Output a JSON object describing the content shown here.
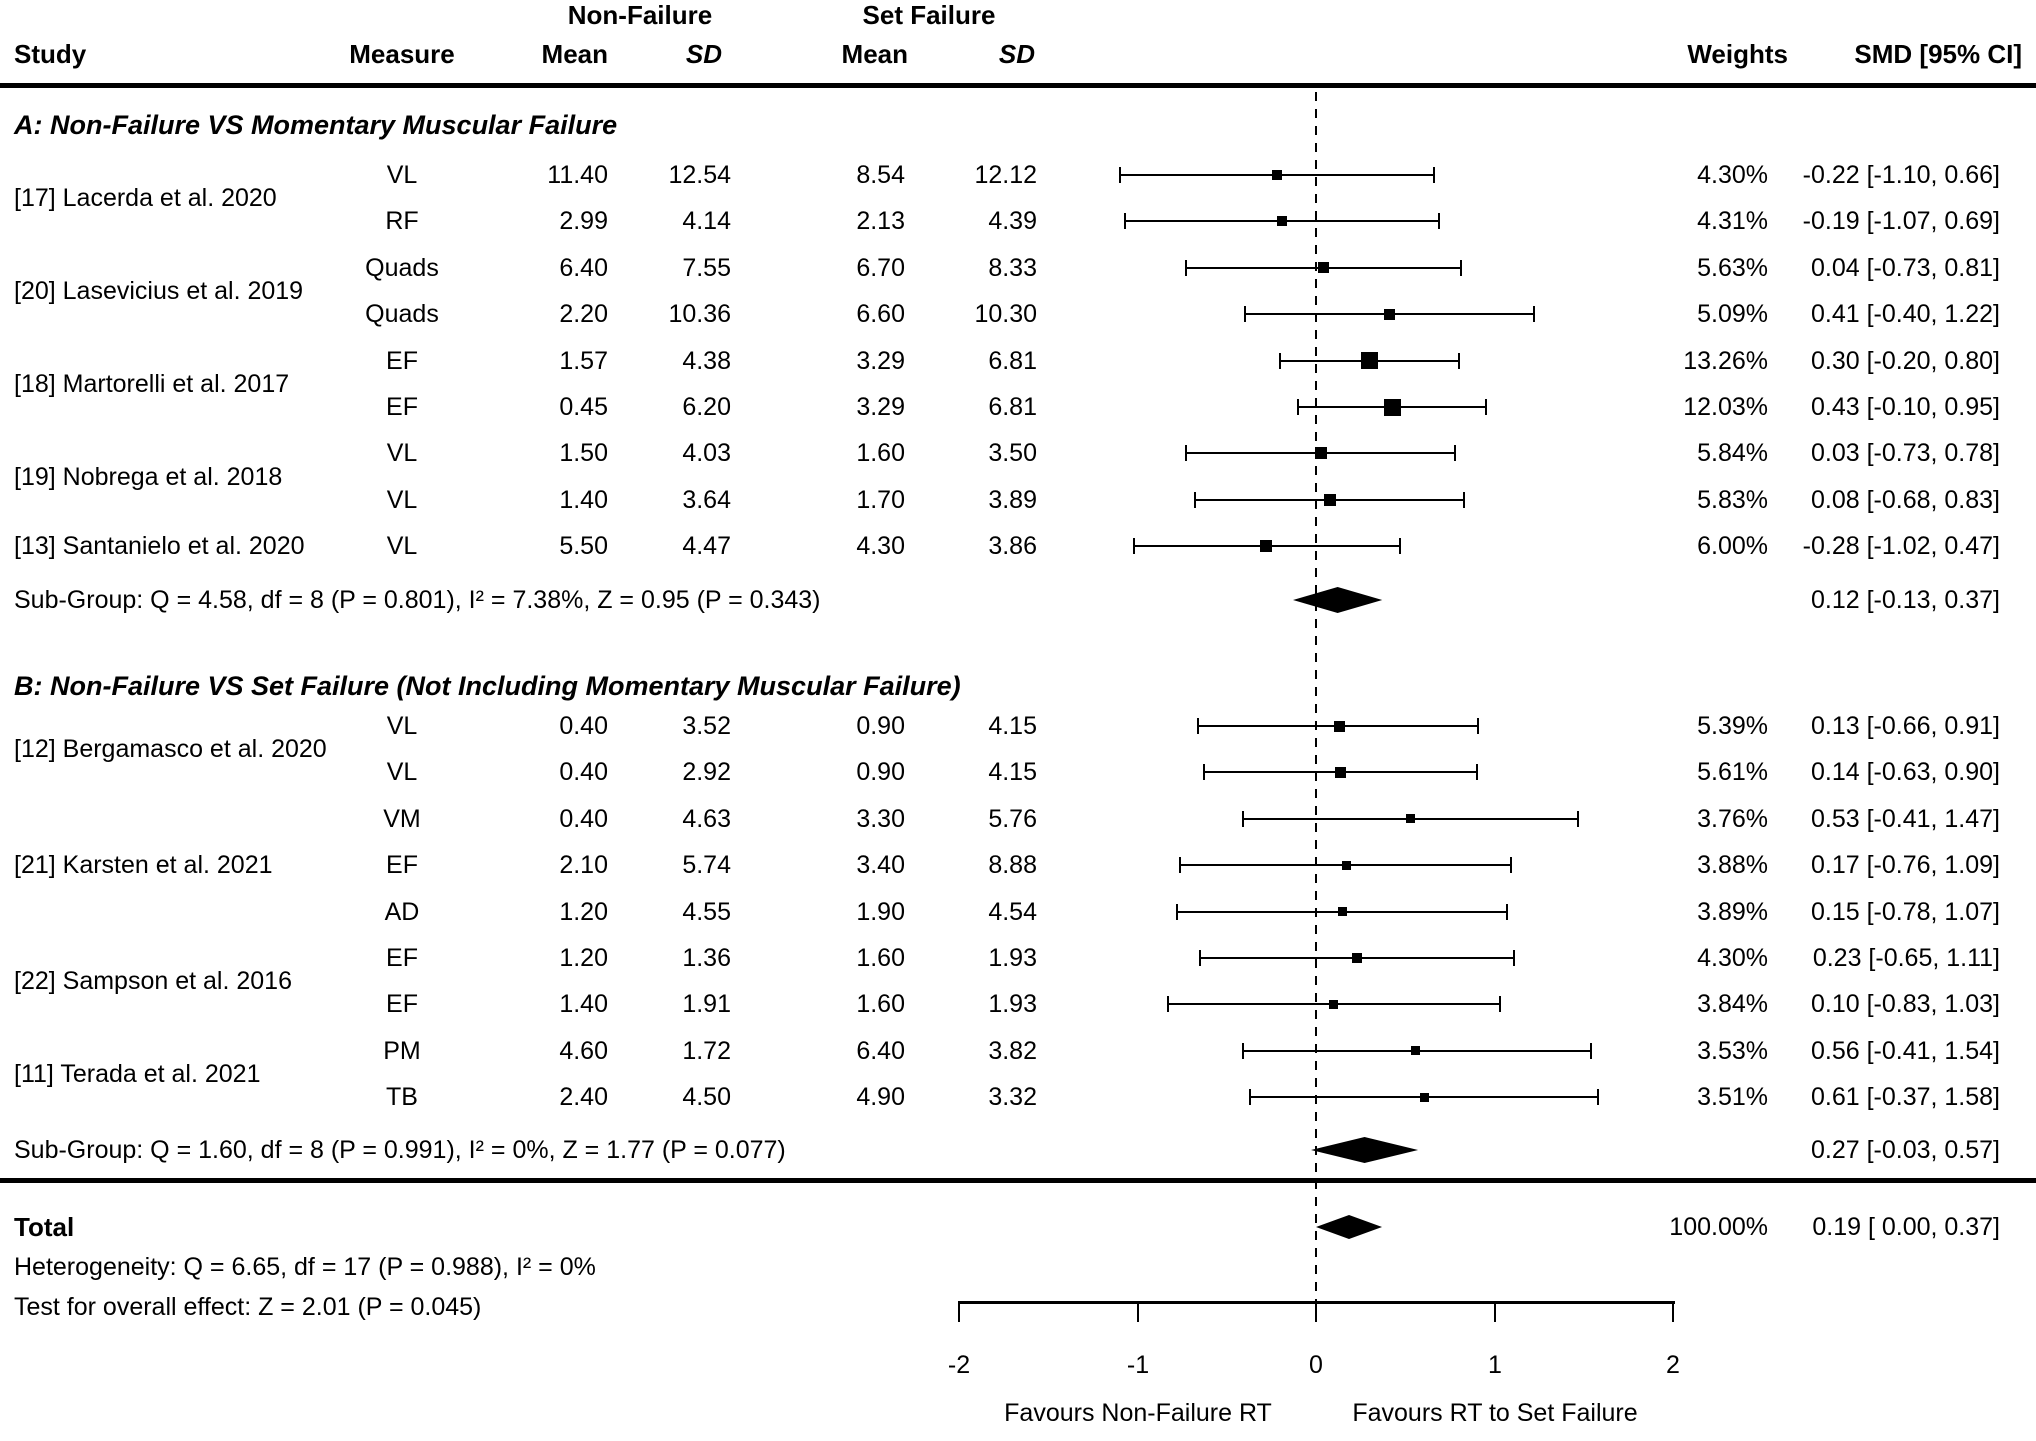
{
  "header": {
    "study": "Study",
    "measure": "Measure",
    "group_nonfailure": "Non-Failure",
    "group_setfailure": "Set Failure",
    "mean": "Mean",
    "sd": "SD",
    "weights": "Weights",
    "smd": "SMD [95% CI]"
  },
  "chart_data": {
    "type": "forest",
    "effect_measure": "SMD",
    "axis": {
      "xmin": -2,
      "xmax": 2,
      "ticks": [
        {
          "value": -2,
          "label": "-2"
        },
        {
          "value": -1,
          "label": "-1"
        },
        {
          "value": 0,
          "label": "0"
        },
        {
          "value": 1,
          "label": "1"
        },
        {
          "value": 2,
          "label": "2"
        }
      ],
      "zero_line": 0,
      "favours_left": "Favours Non-Failure RT",
      "favours_right": "Favours RT to Set Failure"
    },
    "sections": [
      {
        "title": "A: Non-Failure VS Momentary Muscular Failure",
        "studies": [
          {
            "label": "[17] Lacerda et al. 2020",
            "rows": [
              {
                "measure": "VL",
                "nf_mean": "11.40",
                "nf_sd": "12.54",
                "sf_mean": "8.54",
                "sf_sd": "12.12",
                "weight": "4.30%",
                "weight_value": 4.3,
                "smd": -0.22,
                "ci_low": -1.1,
                "ci_high": 0.66,
                "smd_label": "-0.22 [-1.10, 0.66]"
              },
              {
                "measure": "RF",
                "nf_mean": "2.99",
                "nf_sd": "4.14",
                "sf_mean": "2.13",
                "sf_sd": "4.39",
                "weight": "4.31%",
                "weight_value": 4.31,
                "smd": -0.19,
                "ci_low": -1.07,
                "ci_high": 0.69,
                "smd_label": "-0.19 [-1.07, 0.69]"
              }
            ]
          },
          {
            "label": "[20] Lasevicius et al. 2019",
            "rows": [
              {
                "measure": "Quads",
                "nf_mean": "6.40",
                "nf_sd": "7.55",
                "sf_mean": "6.70",
                "sf_sd": "8.33",
                "weight": "5.63%",
                "weight_value": 5.63,
                "smd": 0.04,
                "ci_low": -0.73,
                "ci_high": 0.81,
                "smd_label": "0.04 [-0.73, 0.81]"
              },
              {
                "measure": "Quads",
                "nf_mean": "2.20",
                "nf_sd": "10.36",
                "sf_mean": "6.60",
                "sf_sd": "10.30",
                "weight": "5.09%",
                "weight_value": 5.09,
                "smd": 0.41,
                "ci_low": -0.4,
                "ci_high": 1.22,
                "smd_label": "0.41 [-0.40, 1.22]"
              }
            ]
          },
          {
            "label": "[18] Martorelli et al. 2017",
            "rows": [
              {
                "measure": "EF",
                "nf_mean": "1.57",
                "nf_sd": "4.38",
                "sf_mean": "3.29",
                "sf_sd": "6.81",
                "weight": "13.26%",
                "weight_value": 13.26,
                "smd": 0.3,
                "ci_low": -0.2,
                "ci_high": 0.8,
                "smd_label": "0.30 [-0.20, 0.80]"
              },
              {
                "measure": "EF",
                "nf_mean": "0.45",
                "nf_sd": "6.20",
                "sf_mean": "3.29",
                "sf_sd": "6.81",
                "weight": "12.03%",
                "weight_value": 12.03,
                "smd": 0.43,
                "ci_low": -0.1,
                "ci_high": 0.95,
                "smd_label": "0.43 [-0.10, 0.95]"
              }
            ]
          },
          {
            "label": "[19] Nobrega et al. 2018",
            "rows": [
              {
                "measure": "VL",
                "nf_mean": "1.50",
                "nf_sd": "4.03",
                "sf_mean": "1.60",
                "sf_sd": "3.50",
                "weight": "5.84%",
                "weight_value": 5.84,
                "smd": 0.03,
                "ci_low": -0.73,
                "ci_high": 0.78,
                "smd_label": "0.03 [-0.73, 0.78]"
              },
              {
                "measure": "VL",
                "nf_mean": "1.40",
                "nf_sd": "3.64",
                "sf_mean": "1.70",
                "sf_sd": "3.89",
                "weight": "5.83%",
                "weight_value": 5.83,
                "smd": 0.08,
                "ci_low": -0.68,
                "ci_high": 0.83,
                "smd_label": "0.08 [-0.68, 0.83]"
              }
            ]
          },
          {
            "label": "[13] Santanielo et al. 2020",
            "rows": [
              {
                "measure": "VL",
                "nf_mean": "5.50",
                "nf_sd": "4.47",
                "sf_mean": "4.30",
                "sf_sd": "3.86",
                "weight": "6.00%",
                "weight_value": 6.0,
                "smd": -0.28,
                "ci_low": -1.02,
                "ci_high": 0.47,
                "smd_label": "-0.28 [-1.02, 0.47]"
              }
            ]
          }
        ],
        "subgroup": {
          "text": "Sub-Group: Q = 4.58, df = 8 (P = 0.801), I² = 7.38%, Z = 0.95 (P = 0.343)",
          "smd": 0.12,
          "ci_low": -0.13,
          "ci_high": 0.37,
          "smd_label": "0.12 [-0.13, 0.37]"
        }
      },
      {
        "title": "B: Non-Failure VS Set Failure (Not Including Momentary Muscular Failure)",
        "studies": [
          {
            "label": "[12] Bergamasco et al. 2020",
            "rows": [
              {
                "measure": "VL",
                "nf_mean": "0.40",
                "nf_sd": "3.52",
                "sf_mean": "0.90",
                "sf_sd": "4.15",
                "weight": "5.39%",
                "weight_value": 5.39,
                "smd": 0.13,
                "ci_low": -0.66,
                "ci_high": 0.91,
                "smd_label": "0.13 [-0.66, 0.91]"
              },
              {
                "measure": "VL",
                "nf_mean": "0.40",
                "nf_sd": "2.92",
                "sf_mean": "0.90",
                "sf_sd": "4.15",
                "weight": "5.61%",
                "weight_value": 5.61,
                "smd": 0.14,
                "ci_low": -0.63,
                "ci_high": 0.9,
                "smd_label": "0.14 [-0.63, 0.90]"
              }
            ]
          },
          {
            "label": "[21] Karsten et al. 2021",
            "rows": [
              {
                "measure": "VM",
                "nf_mean": "0.40",
                "nf_sd": "4.63",
                "sf_mean": "3.30",
                "sf_sd": "5.76",
                "weight": "3.76%",
                "weight_value": 3.76,
                "smd": 0.53,
                "ci_low": -0.41,
                "ci_high": 1.47,
                "smd_label": "0.53 [-0.41, 1.47]"
              },
              {
                "measure": "EF",
                "nf_mean": "2.10",
                "nf_sd": "5.74",
                "sf_mean": "3.40",
                "sf_sd": "8.88",
                "weight": "3.88%",
                "weight_value": 3.88,
                "smd": 0.17,
                "ci_low": -0.76,
                "ci_high": 1.09,
                "smd_label": "0.17 [-0.76, 1.09]"
              },
              {
                "measure": "AD",
                "nf_mean": "1.20",
                "nf_sd": "4.55",
                "sf_mean": "1.90",
                "sf_sd": "4.54",
                "weight": "3.89%",
                "weight_value": 3.89,
                "smd": 0.15,
                "ci_low": -0.78,
                "ci_high": 1.07,
                "smd_label": "0.15 [-0.78, 1.07]"
              }
            ]
          },
          {
            "label": "[22] Sampson et al. 2016",
            "rows": [
              {
                "measure": "EF",
                "nf_mean": "1.20",
                "nf_sd": "1.36",
                "sf_mean": "1.60",
                "sf_sd": "1.93",
                "weight": "4.30%",
                "weight_value": 4.3,
                "smd": 0.23,
                "ci_low": -0.65,
                "ci_high": 1.11,
                "smd_label": "0.23 [-0.65, 1.11]"
              },
              {
                "measure": "EF",
                "nf_mean": "1.40",
                "nf_sd": "1.91",
                "sf_mean": "1.60",
                "sf_sd": "1.93",
                "weight": "3.84%",
                "weight_value": 3.84,
                "smd": 0.1,
                "ci_low": -0.83,
                "ci_high": 1.03,
                "smd_label": "0.10 [-0.83, 1.03]"
              }
            ]
          },
          {
            "label": "[11] Terada et al. 2021",
            "rows": [
              {
                "measure": "PM",
                "nf_mean": "4.60",
                "nf_sd": "1.72",
                "sf_mean": "6.40",
                "sf_sd": "3.82",
                "weight": "3.53%",
                "weight_value": 3.53,
                "smd": 0.56,
                "ci_low": -0.41,
                "ci_high": 1.54,
                "smd_label": "0.56 [-0.41, 1.54]"
              },
              {
                "measure": "TB",
                "nf_mean": "2.40",
                "nf_sd": "4.50",
                "sf_mean": "4.90",
                "sf_sd": "3.32",
                "weight": "3.51%",
                "weight_value": 3.51,
                "smd": 0.61,
                "ci_low": -0.37,
                "ci_high": 1.58,
                "smd_label": "0.61 [-0.37, 1.58]"
              }
            ]
          }
        ],
        "subgroup": {
          "text": "Sub-Group: Q = 1.60, df = 8 (P = 0.991), I² = 0%, Z = 1.77 (P = 0.077)",
          "smd": 0.27,
          "ci_low": -0.03,
          "ci_high": 0.57,
          "smd_label": "0.27 [-0.03, 0.57]"
        }
      }
    ],
    "total": {
      "label": "Total",
      "weight": "100.00%",
      "smd": 0.19,
      "ci_low": 0.0,
      "ci_high": 0.37,
      "smd_label": "0.19 [ 0.00, 0.37]",
      "heterogeneity": "Heterogeneity: Q = 6.65, df = 17 (P = 0.988), I² = 0%",
      "overall_effect": "Test for overall effect: Z = 2.01 (P = 0.045)"
    },
    "colors": {
      "foreground": "#000000",
      "background": "#ffffff"
    }
  }
}
